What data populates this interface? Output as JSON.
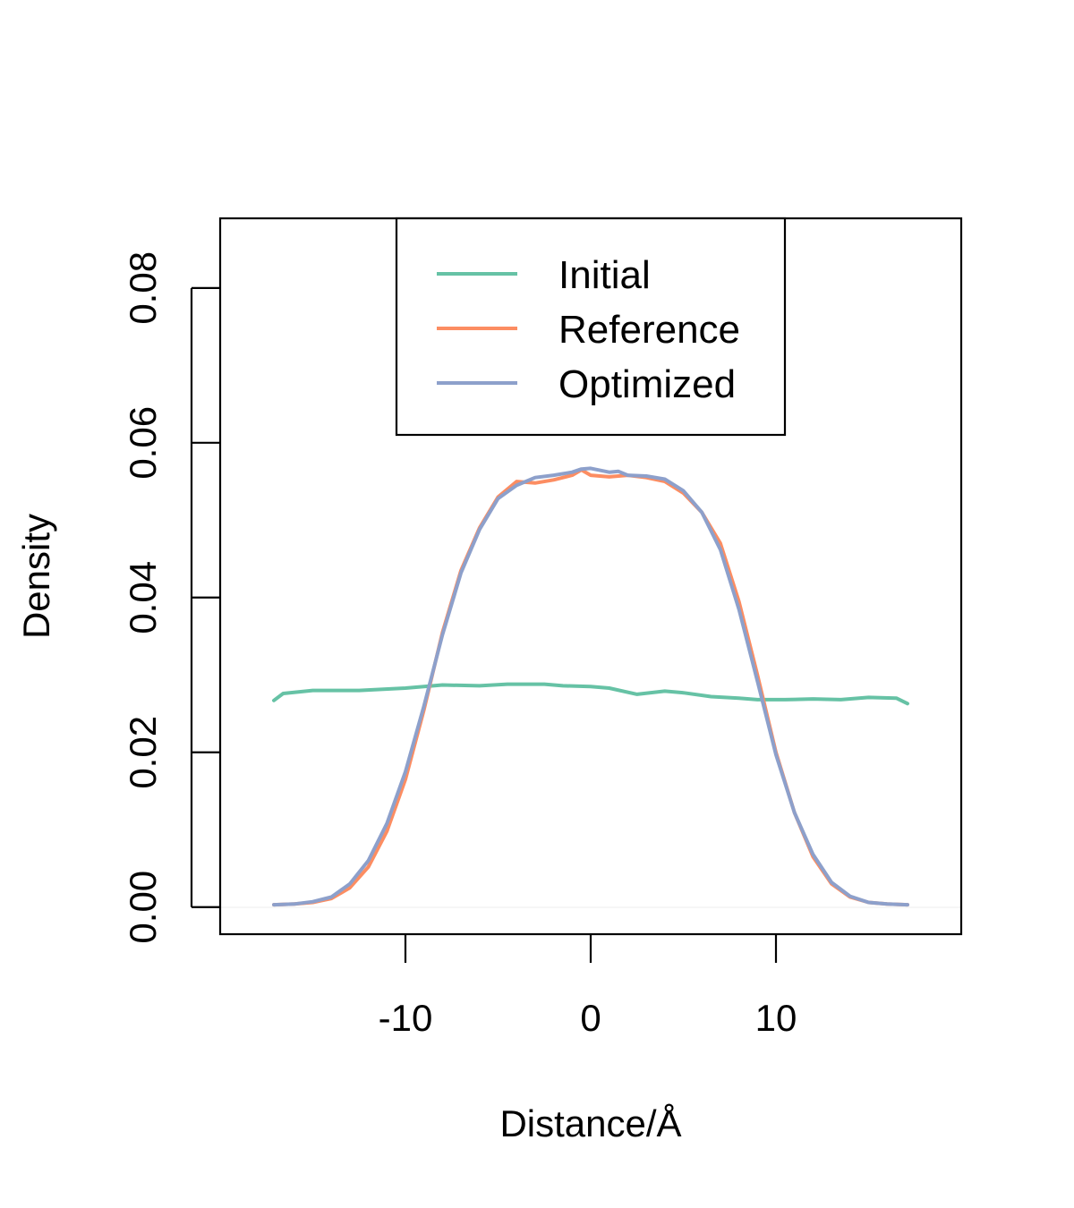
{
  "chart_data": {
    "type": "line",
    "title": "",
    "xlabel": "Distance/Å",
    "ylabel": "Density",
    "xlim": [
      -20,
      20
    ],
    "ylim": [
      -0.0035,
      0.089
    ],
    "xticks": [
      -10,
      0,
      10
    ],
    "xtick_labels": [
      "-10",
      "0",
      "10"
    ],
    "yticks": [
      0.0,
      0.02,
      0.04,
      0.06,
      0.08
    ],
    "ytick_labels": [
      "0.00",
      "0.02",
      "0.04",
      "0.06",
      "0.08"
    ],
    "grid": false,
    "legend_position": "top-center",
    "series": [
      {
        "name": "Initial",
        "color": "#66c2a5",
        "x": [
          -17.1,
          -16.6,
          -15,
          -12.5,
          -10,
          -8,
          -6,
          -4.5,
          -2.5,
          -1.5,
          0,
          1,
          2.5,
          4,
          5,
          6.5,
          8,
          9,
          10.5,
          12,
          13.5,
          15,
          16.5,
          17.1
        ],
        "y": [
          0.0267,
          0.0276,
          0.028,
          0.028,
          0.0283,
          0.0287,
          0.0286,
          0.0288,
          0.0288,
          0.0286,
          0.0285,
          0.0283,
          0.0275,
          0.0279,
          0.0277,
          0.0272,
          0.027,
          0.0268,
          0.0268,
          0.0269,
          0.0268,
          0.0271,
          0.027,
          0.0263
        ]
      },
      {
        "name": "Reference",
        "color": "#fc8d62",
        "x": [
          -17.1,
          -16,
          -15,
          -14,
          -13,
          -12,
          -11,
          -10,
          -9,
          -8,
          -7,
          -6,
          -5,
          -4,
          -3,
          -2,
          -1,
          -0.5,
          0,
          1,
          2,
          3,
          4,
          5,
          6,
          7,
          8,
          9,
          10,
          11,
          12,
          13,
          14,
          15,
          16,
          17.1
        ],
        "y": [
          0.0003,
          0.0004,
          0.0006,
          0.0011,
          0.0025,
          0.0052,
          0.0098,
          0.0165,
          0.0255,
          0.0355,
          0.0435,
          0.049,
          0.053,
          0.055,
          0.0548,
          0.0552,
          0.0558,
          0.0565,
          0.0558,
          0.0556,
          0.0558,
          0.0555,
          0.055,
          0.0535,
          0.051,
          0.047,
          0.0395,
          0.03,
          0.02,
          0.0122,
          0.0065,
          0.003,
          0.0013,
          0.0006,
          0.0004,
          0.0003
        ]
      },
      {
        "name": "Optimized",
        "color": "#8da0cb",
        "x": [
          -17.1,
          -16,
          -15,
          -14,
          -13,
          -12,
          -11,
          -10,
          -9,
          -8,
          -7,
          -6,
          -5,
          -4,
          -3,
          -2,
          -1,
          -0.5,
          0,
          1,
          1.5,
          2,
          3,
          4,
          5,
          6,
          7,
          8,
          9,
          10,
          11,
          12,
          13,
          14,
          15,
          16,
          17.1
        ],
        "y": [
          0.0003,
          0.0004,
          0.0007,
          0.0013,
          0.003,
          0.006,
          0.0108,
          0.0175,
          0.026,
          0.0352,
          0.0432,
          0.0488,
          0.0528,
          0.0545,
          0.0555,
          0.0558,
          0.0562,
          0.0566,
          0.0567,
          0.0562,
          0.0563,
          0.0558,
          0.0557,
          0.0553,
          0.0538,
          0.051,
          0.0462,
          0.0385,
          0.0292,
          0.0197,
          0.0122,
          0.0068,
          0.0032,
          0.0014,
          0.0006,
          0.0004,
          0.0003
        ]
      }
    ]
  }
}
